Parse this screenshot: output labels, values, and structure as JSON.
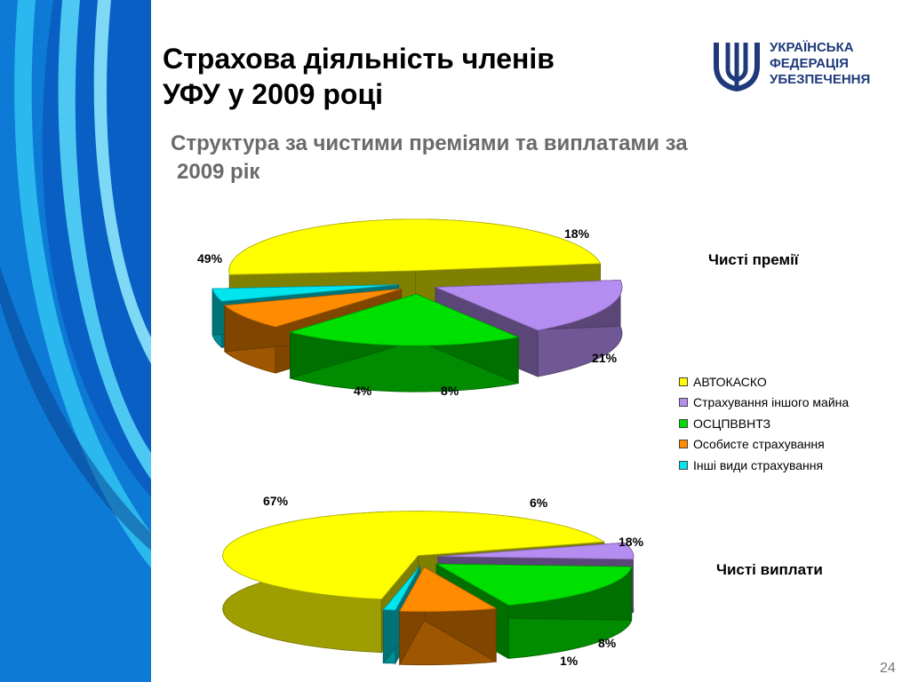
{
  "slide": {
    "title_line1": "Страхова діяльність членів",
    "title_line2": "УФУ у 2009 році",
    "subtitle_line1": "Структура за чистими преміями та виплатами за",
    "subtitle_line2": "2009 рік",
    "logo_line1": "УКРАЇНСЬКА",
    "logo_line2": "ФЕДЕРАЦІЯ",
    "logo_line3": "УБЕЗПЕЧЕННЯ",
    "page_number": "24",
    "accent_colors": [
      "#0a3d8c",
      "#1aa3e0",
      "#1f3a7a"
    ]
  },
  "legend": [
    {
      "label": "АВТОКАСКО",
      "color": "#ffff00"
    },
    {
      "label": "Страхування іншого майна",
      "color": "#b58cf0"
    },
    {
      "label": "ОСЦПВВНТЗ",
      "color": "#00e000"
    },
    {
      "label": "Особисте страхування",
      "color": "#ff8c00"
    },
    {
      "label": "Інші види страхування",
      "color": "#00e5ee"
    }
  ],
  "chart_data": [
    {
      "type": "pie",
      "style": "3d-exploded",
      "title": "Чисті премії",
      "categories": [
        "АВТОКАСКО",
        "Страхування іншого майна",
        "ОСЦПВВНТЗ",
        "Особисте страхування",
        "Інші види страхування"
      ],
      "values": [
        49,
        18,
        21,
        8,
        4
      ],
      "labels": [
        "49%",
        "18%",
        "21%",
        "8%",
        "4%"
      ],
      "legend_position": "right"
    },
    {
      "type": "pie",
      "style": "3d-exploded",
      "title": "Чисті виплати",
      "categories": [
        "АВТОКАСКО",
        "Страхування іншого майна",
        "ОСЦПВВНТЗ",
        "Особисте страхування",
        "Інші види страхування"
      ],
      "values": [
        67,
        6,
        18,
        8,
        1
      ],
      "labels": [
        "67%",
        "6%",
        "18%",
        "8%",
        "1%"
      ],
      "legend_position": "right"
    }
  ]
}
